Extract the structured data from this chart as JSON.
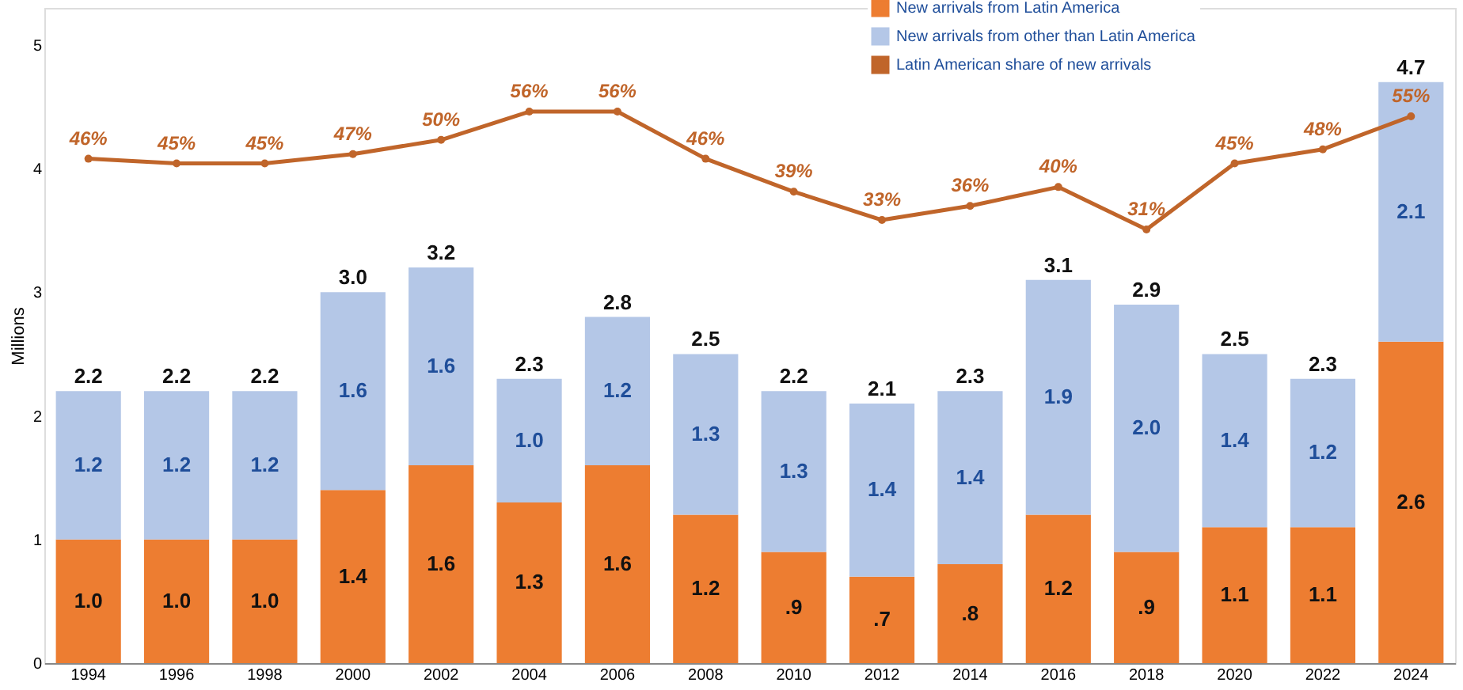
{
  "chart_data": {
    "type": "bar",
    "stacked": true,
    "ylabel": "Millions",
    "categories": [
      "1994",
      "1996",
      "1998",
      "2000",
      "2002",
      "2004",
      "2006",
      "2008",
      "2010",
      "2012",
      "2014",
      "2016",
      "2018",
      "2020",
      "2022",
      "2024"
    ],
    "series": [
      {
        "name": "New arrivals from Latin America",
        "color": "#ed7d31",
        "values": [
          1.0,
          1.0,
          1.0,
          1.4,
          1.6,
          1.3,
          1.6,
          1.2,
          0.9,
          0.7,
          0.8,
          1.2,
          0.9,
          1.1,
          1.1,
          2.6
        ],
        "value_labels": [
          "1.0",
          "1.0",
          "1.0",
          "1.4",
          "1.6",
          "1.3",
          "1.6",
          "1.2",
          ".9",
          ".7",
          ".8",
          "1.2",
          ".9",
          "1.1",
          "1.1",
          "2.6"
        ]
      },
      {
        "name": "New arrivals from other than Latin America",
        "color": "#b4c7e7",
        "values": [
          1.2,
          1.2,
          1.2,
          1.6,
          1.6,
          1.0,
          1.2,
          1.3,
          1.3,
          1.4,
          1.4,
          1.9,
          2.0,
          1.4,
          1.2,
          2.1
        ],
        "value_labels": [
          "1.2",
          "1.2",
          "1.2",
          "1.6",
          "1.6",
          "1.0",
          "1.2",
          "1.3",
          "1.3",
          "1.4",
          "1.4",
          "1.9",
          "2.0",
          "1.4",
          "1.2",
          "2.1"
        ]
      },
      {
        "name": "Latin American share of new arrivals",
        "type": "line",
        "axis": "y2",
        "color": "#c0652a",
        "marker": "circle",
        "values": [
          46,
          45,
          45,
          47,
          50,
          56,
          56,
          46,
          39,
          33,
          36,
          40,
          31,
          45,
          48,
          55
        ],
        "value_labels": [
          "46%",
          "45%",
          "45%",
          "47%",
          "50%",
          "56%",
          "56%",
          "46%",
          "39%",
          "33%",
          "36%",
          "40%",
          "31%",
          "45%",
          "48%",
          "55%"
        ]
      }
    ],
    "totals": [
      "2.2",
      "2.2",
      "2.2",
      "3.0",
      "3.2",
      "2.3",
      "2.8",
      "2.5",
      "2.2",
      "2.1",
      "2.3",
      "3.1",
      "2.9",
      "2.5",
      "2.3",
      "4.7"
    ],
    "ylim": [
      0,
      5.3
    ],
    "yticks": [
      0,
      1,
      2,
      3,
      4,
      5
    ],
    "y2lim": [
      -61,
      78
    ],
    "tick_labels": [
      "x",
      "y"
    ],
    "grid": false,
    "legend": "top right"
  }
}
